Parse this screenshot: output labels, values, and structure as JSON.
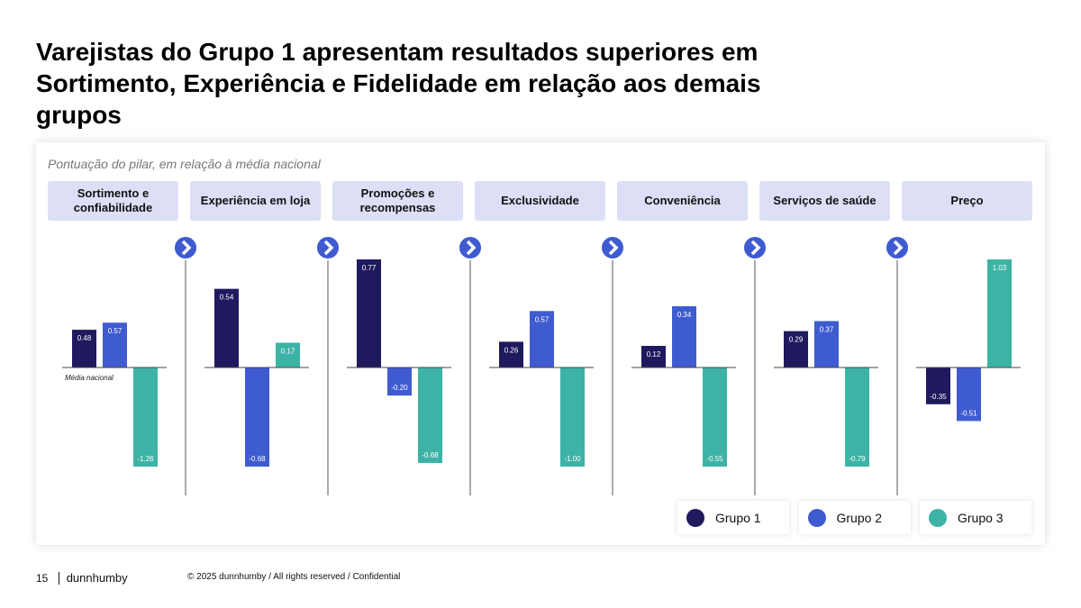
{
  "chart_data": {
    "type": "bar",
    "title": "Varejistas do Grupo 1 apresentam resultados superiores em Sortimento, Experiência e Fidelidade em relação aos demais grupos",
    "subtitle": "Pontuação do pilar, em relação à média nacional",
    "annotation": "Média nacional",
    "categories": [
      "Sortimento e confiabilidade",
      "Experiência em loja",
      "Promoções e recompensas",
      "Exclusividade",
      "Conveniência",
      "Serviços de saúde",
      "Preço"
    ],
    "series": [
      {
        "name": "Grupo 1",
        "color": "#1f1a5e",
        "values": [
          0.48,
          0.54,
          0.77,
          0.26,
          0.12,
          0.29,
          -0.35
        ],
        "value_labels": [
          "0.48",
          "0.54",
          "0.77",
          "0.26",
          "0.12",
          "0.29",
          "-0.35"
        ]
      },
      {
        "name": "Grupo 2",
        "color": "#3f5bd0",
        "values": [
          0.57,
          -0.68,
          -0.2,
          0.57,
          0.34,
          0.37,
          -0.51
        ],
        "value_labels": [
          "0.57",
          "-0.68",
          "-0.20",
          "0.57",
          "0.34",
          "0.37",
          "-0.51"
        ]
      },
      {
        "name": "Grupo 3",
        "color": "#3db3a6",
        "values": [
          -1.26,
          0.17,
          -0.68,
          -1.0,
          -0.55,
          -0.79,
          1.03
        ],
        "value_labels": [
          "-1.26",
          "0.17",
          "-0.68",
          "-1.00",
          "-0.55",
          "-0.79",
          "1.03"
        ]
      }
    ]
  },
  "footer": {
    "page": "15",
    "brand": "dunnhumby",
    "copyright": "© 2025 dunnhumby / All rights reserved / Confidential"
  }
}
